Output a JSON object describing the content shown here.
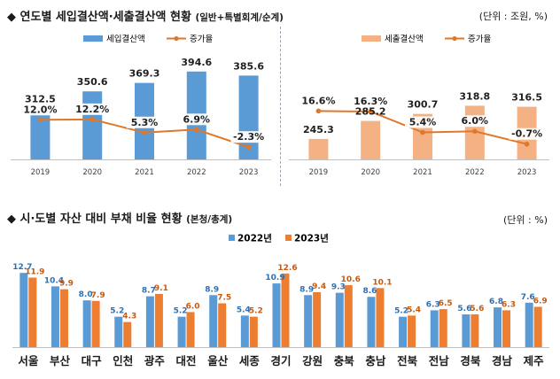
{
  "section1": {
    "title": "◆ 연도별 세입결산액·세출결산액 현황",
    "title_sub": "(일반+특별회계/순계)",
    "unit": "(단위 : 조원, %)"
  },
  "section2": {
    "title": "◆ 시·도별 자산 대비 부채 비율 현황",
    "title_sub": "(본청/총계)",
    "unit": "(단위 : %)"
  },
  "colors": {
    "blue": "#5b9bd5",
    "salmon": "#f4b183",
    "orange_line": "#e0782b",
    "bar_blue_2022": "#5b9bd5",
    "bar_orange_2023": "#ed7d31"
  },
  "chart_data": [
    {
      "type": "bar",
      "categories": [
        "2019",
        "2020",
        "2021",
        "2022",
        "2023"
      ],
      "series": [
        {
          "name": "세입결산액",
          "values": [
            312.5,
            350.6,
            369.3,
            394.6,
            385.6
          ],
          "color": "#5b9bd5"
        },
        {
          "name": "증가율",
          "type": "line",
          "values": [
            12.0,
            12.2,
            5.3,
            6.9,
            -2.3
          ],
          "color": "#e0782b"
        }
      ],
      "value_labels": [
        "312.5",
        "350.6",
        "369.3",
        "394.6",
        "385.6"
      ],
      "rate_labels": [
        "12.0%",
        "12.2%",
        "5.3%",
        "6.9%",
        "-2.3%"
      ],
      "legend": "top-center"
    },
    {
      "type": "bar",
      "categories": [
        "2019",
        "2020",
        "2021",
        "2022",
        "2023"
      ],
      "series": [
        {
          "name": "세출결산액",
          "values": [
            245.3,
            285.2,
            300.7,
            318.8,
            316.5
          ],
          "color": "#f4b183"
        },
        {
          "name": "증가율",
          "type": "line",
          "values": [
            16.6,
            16.3,
            5.4,
            6.0,
            -0.7
          ],
          "color": "#e0782b"
        }
      ],
      "value_labels": [
        "245.3",
        "285.2",
        "300.7",
        "318.8",
        "316.5"
      ],
      "rate_labels": [
        "16.6%",
        "16.3%",
        "5.4%",
        "6.0%",
        "-0.7%"
      ],
      "legend": "top-center"
    },
    {
      "type": "bar",
      "categories": [
        "서울",
        "부산",
        "대구",
        "인천",
        "광주",
        "대전",
        "울산",
        "세종",
        "경기",
        "강원",
        "충북",
        "충남",
        "전북",
        "전남",
        "경북",
        "경남",
        "제주"
      ],
      "series": [
        {
          "name": "2022년",
          "values": [
            12.7,
            10.4,
            8.0,
            5.2,
            8.7,
            5.2,
            8.9,
            5.4,
            10.9,
            8.9,
            9.3,
            8.6,
            5.2,
            6.3,
            5.6,
            6.8,
            7.6
          ],
          "color": "#5b9bd5"
        },
        {
          "name": "2023년",
          "values": [
            11.9,
            9.9,
            7.9,
            4.3,
            9.1,
            6.0,
            7.5,
            5.2,
            12.6,
            9.4,
            10.6,
            10.1,
            5.4,
            6.5,
            5.6,
            6.3,
            6.9
          ],
          "color": "#ed7d31"
        }
      ],
      "legend": "top-center"
    }
  ]
}
